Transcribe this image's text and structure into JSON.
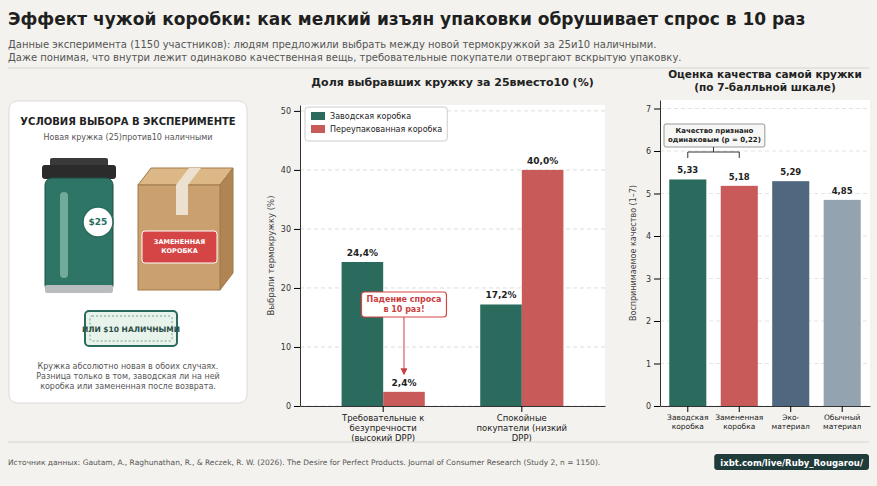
{
  "title": "Эффект чужой коробки: как мелкий изъян упаковки обрушивает спрос в 10 раз",
  "subtitle": [
    "Данные эксперимента (1150 участников): людям предложили выбрать между новой термокружкой за 25и10 наличными.",
    "Даже понимая, что внутри лежит одинаково качественная вещь, требовательные покупатели отвергают вскрытую упаковку."
  ],
  "panel": {
    "title": "УСЛОВИЯ ВЫБОРА В ЭКСПЕРИМЕНТЕ",
    "subtitle": "Новая кружка (25)против10 наличными",
    "price_badge": "$25",
    "box_label": "ЗАМЕНЕННАЯ КОРОБКА",
    "cash_label": "ИЛИ $10 НАЛИЧНЫМИ",
    "description": "Кружка абсолютно новая в обоих случаях. Разница только в том, заводская ли на ней коробка или замененная после возврата."
  },
  "chart_data": [
    {
      "type": "bar",
      "title": "Доля выбравших кружку за 25вместо10 (%)",
      "categories": [
        "Требовательные к безупречности (высокий DPP)",
        "Спокойные покупатели (низкий DPP)"
      ],
      "series": [
        {
          "name": "Заводская коробка",
          "color": "#2a6b5e",
          "values": [
            24.4,
            17.2
          ],
          "value_labels": [
            "24,4%",
            "17,2%"
          ]
        },
        {
          "name": "Переупакованная коробка",
          "color": "#c85a5a",
          "values": [
            2.4,
            40.0
          ],
          "value_labels": [
            "2,4%",
            "40,0%"
          ]
        }
      ],
      "ylabel": "Выбрали термокружку (%)",
      "ylim": [
        0,
        51
      ],
      "yticks": [
        0,
        10,
        20,
        30,
        40,
        50
      ],
      "grid": true,
      "legend": "upper left",
      "data_labels": true,
      "annotation": "Падение спроса в 10 раз!"
    },
    {
      "type": "bar",
      "title": "Оценка качества самой кружки (по 7-балльной шкале)",
      "categories": [
        "Заводская коробка",
        "Замененная коробка",
        "Эко-материал",
        "Обычный материал"
      ],
      "values": [
        5.33,
        5.18,
        5.29,
        4.85
      ],
      "value_labels": [
        "5,33",
        "5,18",
        "5,29",
        "4,85"
      ],
      "colors": [
        "#2a6b5e",
        "#c85a5a",
        "#4f6880",
        "#93a3b0"
      ],
      "ylabel": "Воспринимаемое качество (1–7)",
      "ylim": [
        0,
        7.2
      ],
      "yticks": [
        0,
        1,
        2,
        3,
        4,
        5,
        6,
        7
      ],
      "grid": true,
      "data_labels": true,
      "annotation": "Качество признано одинаковым (p = 0,22)"
    }
  ],
  "footer": {
    "source": "Источник данных: Gautam, A., Raghunathan, R., & Reczek, R. W. (2026). The Desire for Perfect Products. Journal of Consumer Research (Study 2, n = 1150).",
    "badge": "ixbt.com/live/Ruby_Rougarou/"
  }
}
